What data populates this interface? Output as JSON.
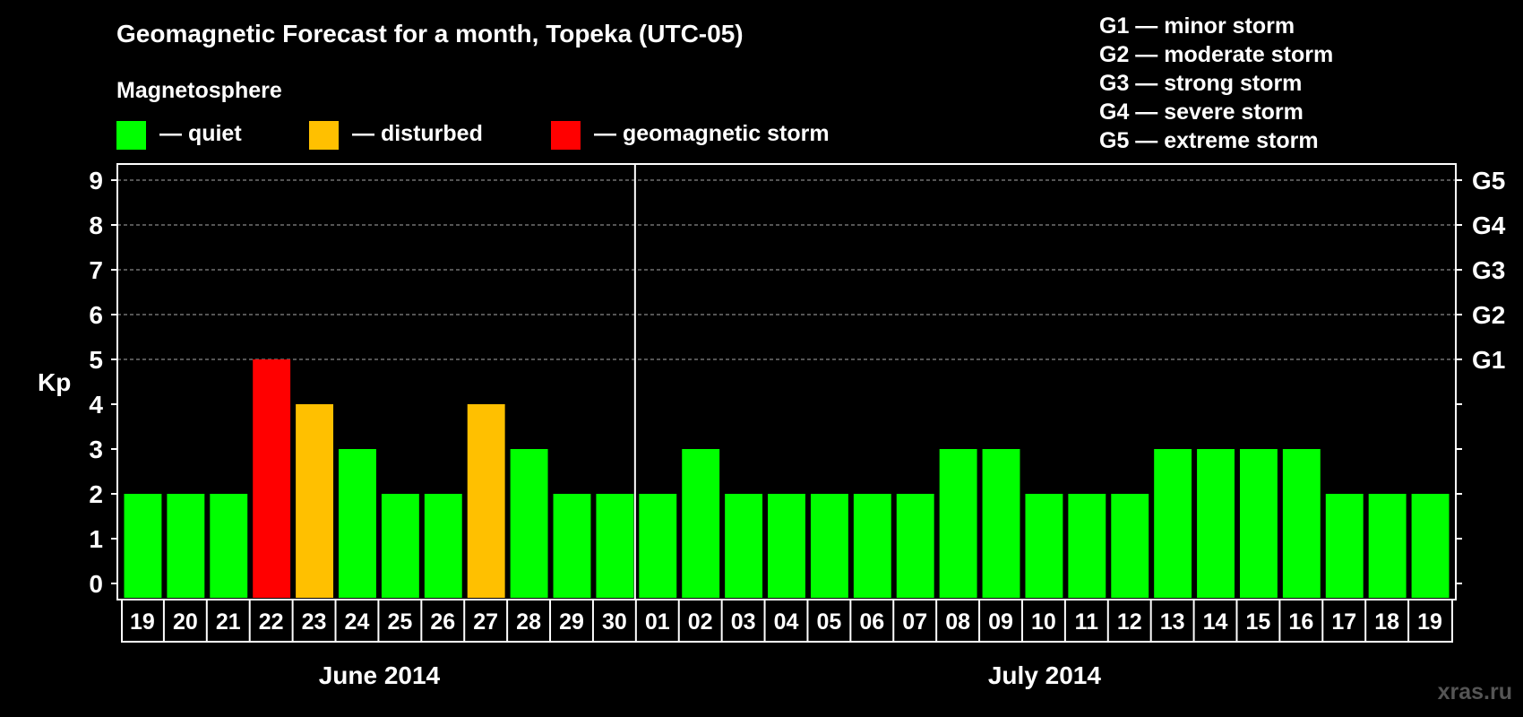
{
  "chart_data": {
    "type": "bar",
    "title": "Geomagnetic Forecast for a month, Topeka (UTC-05)",
    "legend": {
      "heading": "Magnetosphere",
      "items": [
        {
          "label": "— quiet",
          "color": "#00ff00"
        },
        {
          "label": "— disturbed",
          "color": "#ffc000"
        },
        {
          "label": "— geomagnetic storm",
          "color": "#ff0000"
        }
      ]
    },
    "storm_scale": [
      "G1 — minor storm",
      "G2 — moderate storm",
      "G3 — strong storm",
      "G4 — severe storm",
      "G5 — extreme storm"
    ],
    "ylabel": "Kp",
    "ylim": [
      0,
      9
    ],
    "yticks": [
      "0",
      "1",
      "2",
      "3",
      "4",
      "5",
      "6",
      "7",
      "8",
      "9"
    ],
    "right_axis": [
      {
        "value": 5,
        "label": "G1"
      },
      {
        "value": 6,
        "label": "G2"
      },
      {
        "value": 7,
        "label": "G3"
      },
      {
        "value": 8,
        "label": "G4"
      },
      {
        "value": 9,
        "label": "G5"
      }
    ],
    "categories": [
      "19",
      "20",
      "21",
      "22",
      "23",
      "24",
      "25",
      "26",
      "27",
      "28",
      "29",
      "30",
      "01",
      "02",
      "03",
      "04",
      "05",
      "06",
      "07",
      "08",
      "09",
      "10",
      "11",
      "12",
      "13",
      "14",
      "15",
      "16",
      "17",
      "18",
      "19"
    ],
    "values": [
      2,
      2,
      2,
      5,
      4,
      3,
      2,
      2,
      4,
      3,
      2,
      2,
      2,
      3,
      2,
      2,
      2,
      2,
      2,
      3,
      3,
      2,
      2,
      2,
      3,
      3,
      3,
      3,
      2,
      2,
      2
    ],
    "month_groups": [
      {
        "label": "June 2014",
        "count": 12
      },
      {
        "label": "July 2014",
        "count": 19
      }
    ],
    "level_colors": {
      "quiet": "#00ff00",
      "disturbed": "#ffc000",
      "storm": "#ff0000"
    },
    "grid_dashed_from": 5
  },
  "watermark": "xras.ru"
}
